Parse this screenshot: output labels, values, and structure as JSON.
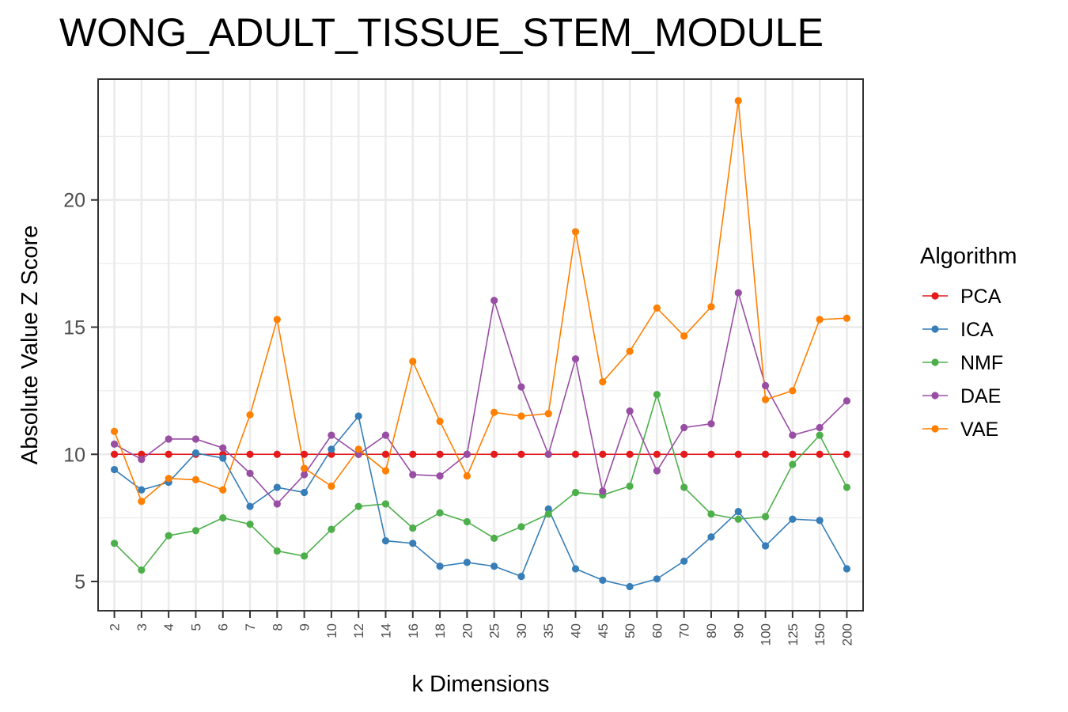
{
  "chart_data": {
    "type": "line",
    "title": "WONG_ADULT_TISSUE_STEM_MODULE",
    "xlabel": "k Dimensions",
    "ylabel": "Absolute Value Z Score",
    "categories": [
      "2",
      "3",
      "4",
      "5",
      "6",
      "7",
      "8",
      "9",
      "10",
      "12",
      "14",
      "16",
      "18",
      "20",
      "25",
      "30",
      "35",
      "40",
      "45",
      "50",
      "60",
      "70",
      "80",
      "90",
      "100",
      "125",
      "150",
      "200"
    ],
    "ylim": [
      3.85,
      24.75
    ],
    "yticks": [
      5,
      10,
      15,
      20
    ],
    "legend": {
      "title": "Algorithm",
      "position": "right"
    },
    "grid": true,
    "series": [
      {
        "name": "PCA",
        "color": "#E41A1C",
        "values": [
          10.0,
          10.0,
          10.0,
          10.0,
          10.0,
          10.0,
          10.0,
          10.0,
          10.0,
          10.0,
          10.0,
          10.0,
          10.0,
          10.0,
          10.0,
          10.0,
          10.0,
          10.0,
          10.0,
          10.0,
          10.0,
          10.0,
          10.0,
          10.0,
          10.0,
          10.0,
          10.0,
          10.0
        ]
      },
      {
        "name": "ICA",
        "color": "#377EB8",
        "values": [
          9.4,
          8.6,
          8.9,
          10.05,
          9.85,
          7.95,
          8.7,
          8.5,
          10.2,
          11.5,
          6.6,
          6.5,
          5.6,
          5.75,
          5.6,
          5.2,
          7.85,
          5.5,
          5.05,
          4.8,
          5.1,
          5.8,
          6.75,
          7.75,
          6.4,
          7.45,
          7.4,
          5.5
        ]
      },
      {
        "name": "NMF",
        "color": "#4DAF4A",
        "values": [
          6.5,
          5.45,
          6.8,
          7.0,
          7.5,
          7.25,
          6.2,
          6.0,
          7.05,
          7.95,
          8.05,
          7.1,
          7.7,
          7.35,
          6.7,
          7.15,
          7.65,
          8.5,
          8.4,
          8.75,
          12.35,
          8.7,
          7.65,
          7.45,
          7.55,
          9.6,
          10.75,
          8.7
        ]
      },
      {
        "name": "DAE",
        "color": "#984EA3",
        "values": [
          10.4,
          9.8,
          10.6,
          10.6,
          10.25,
          9.25,
          8.05,
          9.2,
          10.75,
          10.0,
          10.75,
          9.2,
          9.15,
          10.0,
          16.05,
          12.65,
          10.0,
          13.75,
          8.55,
          11.7,
          9.35,
          11.05,
          11.2,
          16.35,
          12.7,
          10.75,
          11.05,
          12.1
        ]
      },
      {
        "name": "VAE",
        "color": "#FF7F00",
        "values": [
          10.9,
          8.15,
          9.05,
          9.0,
          8.6,
          11.55,
          15.3,
          9.45,
          8.75,
          10.2,
          9.35,
          13.65,
          11.3,
          9.15,
          11.65,
          11.5,
          11.6,
          18.75,
          12.85,
          14.05,
          15.75,
          14.65,
          15.8,
          23.9,
          12.15,
          12.5,
          15.3,
          15.35
        ]
      }
    ]
  }
}
